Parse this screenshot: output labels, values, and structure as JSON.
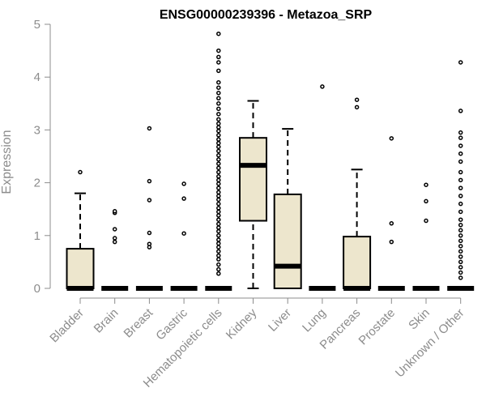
{
  "chart_data": {
    "type": "boxplot",
    "title": "ENSG00000239396 - Metazoa_SRP",
    "xlabel": "",
    "ylabel": "Expression",
    "ylim": [
      0,
      5
    ],
    "yticks": [
      0,
      1,
      2,
      3,
      4,
      5
    ],
    "colors": {
      "box_fill": "#ede6cd",
      "box_stroke": "#000000",
      "axis": "#8c8c8c"
    },
    "categories": [
      "Bladder",
      "Brain",
      "Breast",
      "Gastric",
      "Hematopoietic cells",
      "Kidney",
      "Liver",
      "Lung",
      "Pancreas",
      "Prostate",
      "Skin",
      "Unknown / Other"
    ],
    "series": [
      {
        "name": "Bladder",
        "min": 0,
        "q1": 0,
        "median": 0,
        "q3": 0.75,
        "max": 1.8,
        "outliers": [
          2.2
        ]
      },
      {
        "name": "Brain",
        "min": 0,
        "q1": 0,
        "median": 0,
        "q3": 0,
        "max": 0,
        "outliers": [
          0.88,
          0.95,
          1.12,
          1.43,
          1.46
        ]
      },
      {
        "name": "Breast",
        "min": 0,
        "q1": 0,
        "median": 0,
        "q3": 0,
        "max": 0,
        "outliers": [
          0.78,
          0.84,
          1.05,
          1.67,
          2.03,
          3.03
        ]
      },
      {
        "name": "Gastric",
        "min": 0,
        "q1": 0,
        "median": 0,
        "q3": 0,
        "max": 0,
        "outliers": [
          1.04,
          1.7,
          1.98
        ]
      },
      {
        "name": "Hematopoietic cells",
        "min": 0,
        "q1": 0,
        "median": 0,
        "q3": 0,
        "max": 0,
        "outliers": [
          0.28,
          0.36,
          0.45,
          0.55,
          0.62,
          0.7,
          0.78,
          0.85,
          0.92,
          1.0,
          1.08,
          1.15,
          1.22,
          1.3,
          1.38,
          1.45,
          1.52,
          1.6,
          1.68,
          1.75,
          1.82,
          1.9,
          1.98,
          2.05,
          2.12,
          2.2,
          2.28,
          2.36,
          2.44,
          2.52,
          2.6,
          2.68,
          2.75,
          2.82,
          2.9,
          2.98,
          3.05,
          3.12,
          3.2,
          3.3,
          3.4,
          3.5,
          3.6,
          3.7,
          3.8,
          3.9,
          4.12,
          4.28,
          4.38,
          4.5,
          4.82
        ]
      },
      {
        "name": "Kidney",
        "min": 0,
        "q1": 1.28,
        "median": 2.33,
        "q3": 2.85,
        "max": 3.55,
        "outliers": []
      },
      {
        "name": "Liver",
        "min": 0,
        "q1": 0,
        "median": 0.42,
        "q3": 1.78,
        "max": 3.02,
        "outliers": []
      },
      {
        "name": "Lung",
        "min": 0,
        "q1": 0,
        "median": 0,
        "q3": 0,
        "max": 0,
        "outliers": [
          3.82
        ]
      },
      {
        "name": "Pancreas",
        "min": 0,
        "q1": 0,
        "median": 0,
        "q3": 0.98,
        "max": 2.25,
        "outliers": [
          3.43,
          3.57
        ]
      },
      {
        "name": "Prostate",
        "min": 0,
        "q1": 0,
        "median": 0,
        "q3": 0,
        "max": 0,
        "outliers": [
          0.88,
          1.23,
          2.84
        ]
      },
      {
        "name": "Skin",
        "min": 0,
        "q1": 0,
        "median": 0,
        "q3": 0,
        "max": 0,
        "outliers": [
          1.28,
          1.65,
          1.96
        ]
      },
      {
        "name": "Unknown / Other",
        "min": 0,
        "q1": 0,
        "median": 0,
        "q3": 0,
        "max": 0,
        "outliers": [
          0.2,
          0.3,
          0.4,
          0.5,
          0.6,
          0.7,
          0.8,
          0.9,
          1.0,
          1.1,
          1.2,
          1.3,
          1.45,
          1.6,
          1.75,
          1.9,
          2.05,
          2.2,
          2.4,
          2.55,
          2.7,
          2.85,
          2.95,
          3.36,
          4.28
        ]
      }
    ]
  }
}
